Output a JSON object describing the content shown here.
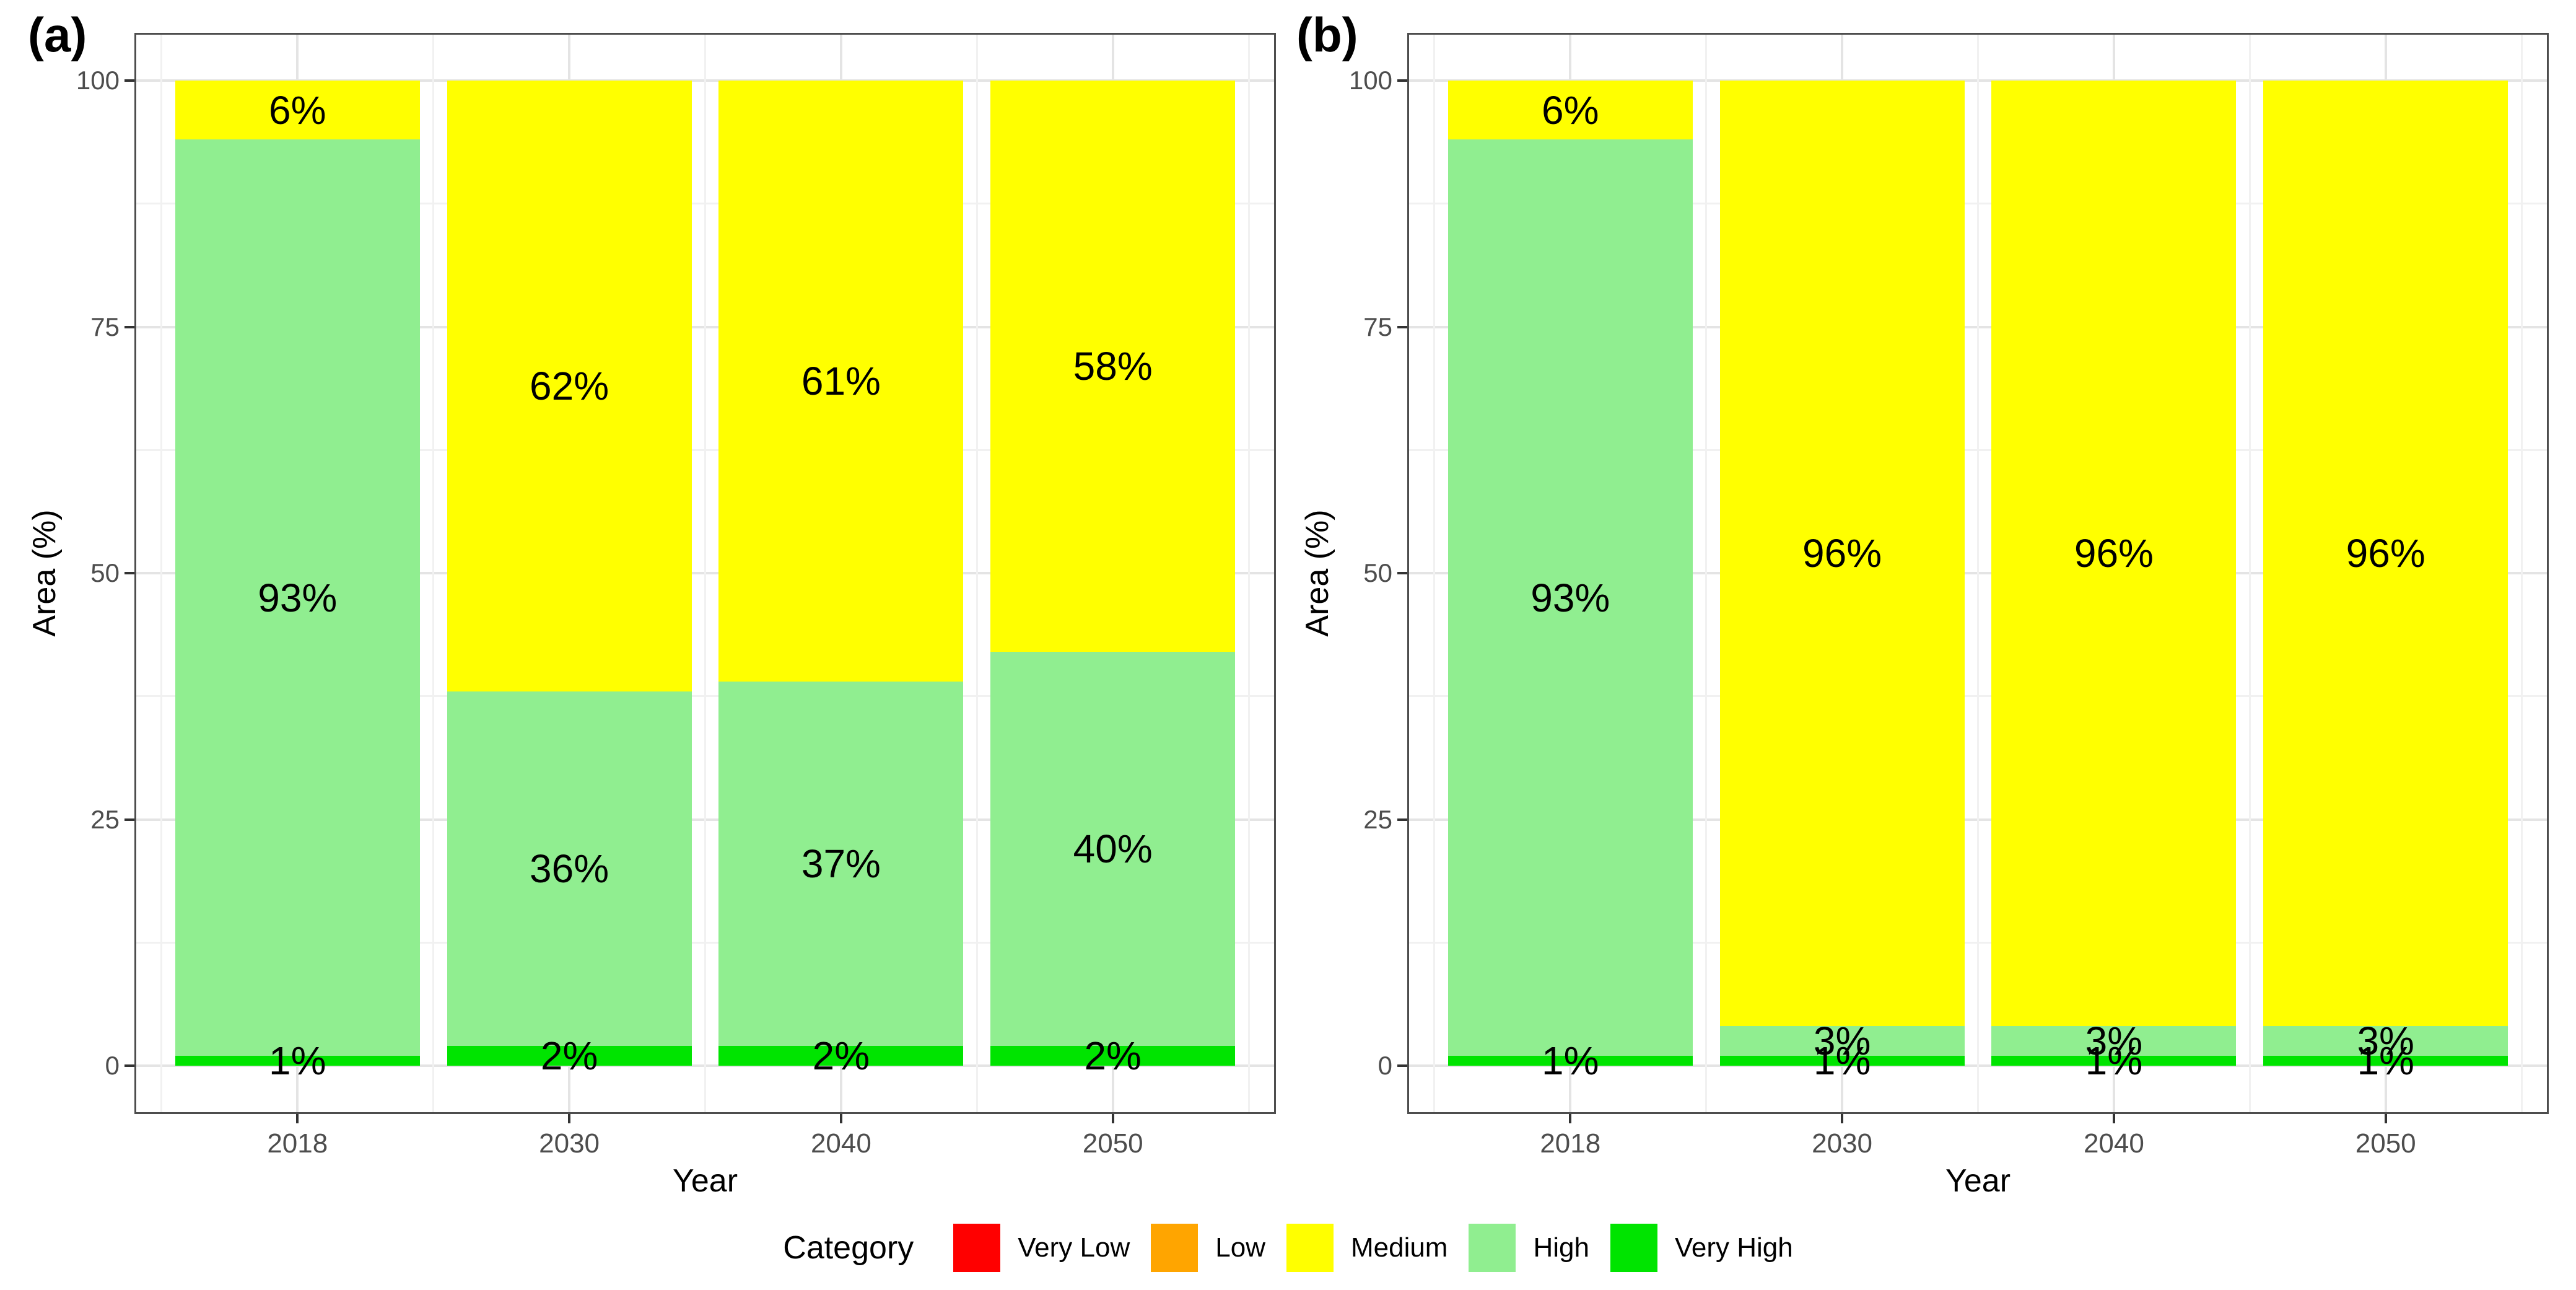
{
  "figure": {
    "panel_tags": [
      "(a)",
      "(b)"
    ],
    "legend": {
      "title": "Category",
      "items": [
        {
          "label": "Very Low",
          "color": "#FF0000"
        },
        {
          "label": "Low",
          "color": "#FFA500"
        },
        {
          "label": "Medium",
          "color": "#FFFF00"
        },
        {
          "label": "High",
          "color": "#90EE90"
        },
        {
          "label": "Very High",
          "color": "#00E400"
        }
      ]
    }
  },
  "chart_data": [
    {
      "type": "bar",
      "stacked": true,
      "stack_order": "bottom-to-top",
      "panel": "(a)",
      "title": "",
      "xlabel": "Year",
      "ylabel": "Area (%)",
      "categories": [
        "2018",
        "2030",
        "2040",
        "2050"
      ],
      "series": [
        {
          "name": "Very High",
          "color": "#00E400",
          "values": [
            1,
            2,
            2,
            2
          ]
        },
        {
          "name": "High",
          "color": "#90EE90",
          "values": [
            93,
            36,
            37,
            40
          ]
        },
        {
          "name": "Medium",
          "color": "#FFFF00",
          "values": [
            6,
            62,
            61,
            58
          ]
        }
      ],
      "bar_label_suffix": "%",
      "ylim": [
        0,
        100
      ],
      "y_ticks": [
        0,
        25,
        50,
        75,
        100
      ],
      "y_minor_ticks": [
        12.5,
        37.5,
        62.5,
        87.5
      ],
      "grid": true,
      "legend_position": "bottom-shared"
    },
    {
      "type": "bar",
      "stacked": true,
      "stack_order": "bottom-to-top",
      "panel": "(b)",
      "title": "",
      "xlabel": "Year",
      "ylabel": "Area (%)",
      "categories": [
        "2018",
        "2030",
        "2040",
        "2050"
      ],
      "series": [
        {
          "name": "Very High",
          "color": "#00E400",
          "values": [
            1,
            1,
            1,
            1
          ]
        },
        {
          "name": "High",
          "color": "#90EE90",
          "values": [
            93,
            3,
            3,
            3
          ]
        },
        {
          "name": "Medium",
          "color": "#FFFF00",
          "values": [
            6,
            96,
            96,
            96
          ]
        }
      ],
      "bar_label_suffix": "%",
      "ylim": [
        0,
        100
      ],
      "y_ticks": [
        0,
        25,
        50,
        75,
        100
      ],
      "y_minor_ticks": [
        12.5,
        37.5,
        62.5,
        87.5
      ],
      "grid": true,
      "legend_position": "bottom-shared"
    }
  ]
}
